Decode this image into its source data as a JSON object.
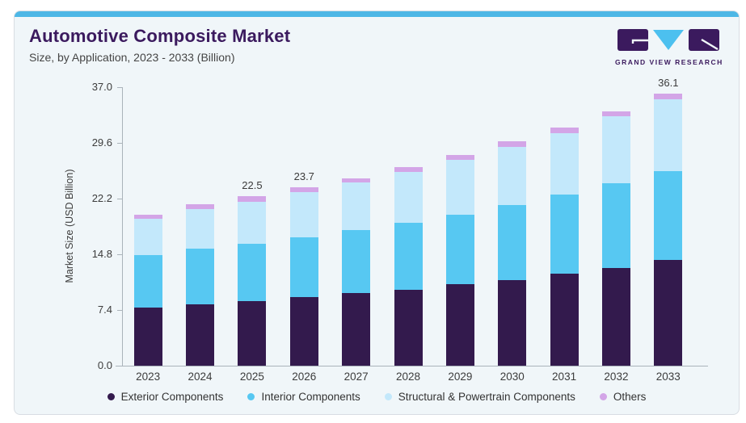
{
  "header": {
    "title": "Automotive Composite Market",
    "subtitle": "Size, by Application, 2023 - 2033 (Billion)"
  },
  "brand": {
    "logo_text": "GRAND VIEW RESEARCH",
    "logo_purple": "#3b1a5e",
    "logo_blue": "#4cc0ef"
  },
  "colors": {
    "accent_top_bar": "#4db7e6",
    "card_background": "#f0f6f9",
    "card_border": "#d8dde3",
    "title_text": "#3b1a5e",
    "subtitle_text": "#454545",
    "axis_text": "#3c3c3c",
    "axis_line": "#aab3ba",
    "legend_text": "#333333"
  },
  "chart_data": {
    "type": "bar",
    "stacked": true,
    "title": "Automotive Composite Market",
    "subtitle": "Size, by Application, 2023 - 2033 (Billion)",
    "xlabel": "",
    "ylabel": "Market Size (USD Billion)",
    "categories": [
      "2023",
      "2024",
      "2025",
      "2026",
      "2027",
      "2028",
      "2029",
      "2030",
      "2031",
      "2032",
      "2033"
    ],
    "series": [
      {
        "name": "Exterior Components",
        "color": "#331a4d",
        "values": [
          7.7,
          8.2,
          8.6,
          9.1,
          9.7,
          10.1,
          10.8,
          11.4,
          12.2,
          13.0,
          14.1
        ]
      },
      {
        "name": "Interior Components",
        "color": "#57c8f2",
        "values": [
          7.0,
          7.3,
          7.6,
          8.0,
          8.3,
          8.9,
          9.3,
          9.9,
          10.5,
          11.2,
          11.8
        ]
      },
      {
        "name": "Structural & Powertrain Components",
        "color": "#c3e8fb",
        "values": [
          4.8,
          5.3,
          5.6,
          6.0,
          6.3,
          6.7,
          7.3,
          7.8,
          8.2,
          8.9,
          9.5
        ]
      },
      {
        "name": "Others",
        "color": "#d3a5e7",
        "values": [
          0.6,
          0.6,
          0.7,
          0.6,
          0.6,
          0.7,
          0.6,
          0.7,
          0.7,
          0.7,
          0.7
        ]
      }
    ],
    "totals": [
      20.1,
      21.4,
      22.5,
      23.7,
      24.9,
      26.4,
      28.0,
      29.8,
      31.6,
      33.8,
      36.1
    ],
    "value_labels": {
      "2025": "22.5",
      "2026": "23.7",
      "2033": "36.1"
    },
    "y_ticks": [
      "0.0",
      "7.4",
      "14.8",
      "22.2",
      "29.6",
      "37.0"
    ],
    "ylim": [
      0,
      37.0
    ],
    "grid": false,
    "legend_position": "bottom"
  }
}
